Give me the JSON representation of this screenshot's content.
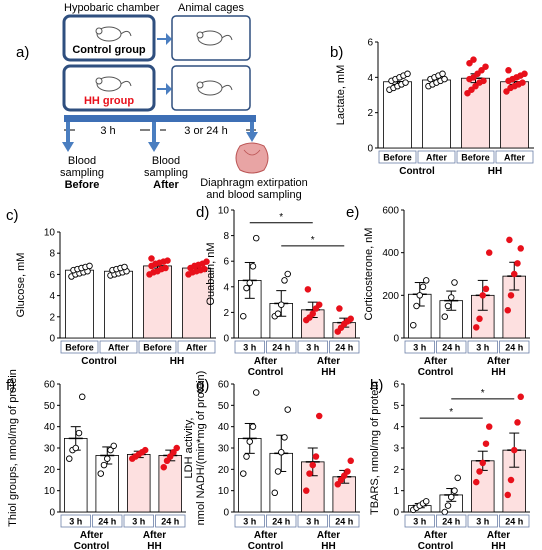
{
  "diagram": {
    "panel_label": "a)",
    "chamber_title": "Hypobaric chamber",
    "cages_title": "Animal cages",
    "control_group": "Control group",
    "hh_group": "HH group",
    "time_1": "3 h",
    "time_2": "3 or 24 h",
    "sampling_before_1": "Blood",
    "sampling_before_2": "sampling",
    "sampling_before_3": "Before",
    "sampling_after_1": "Blood",
    "sampling_after_2": "sampling",
    "sampling_after_3": "After",
    "extirpation_1": "Diaphragm extirpation",
    "extirpation_2": "and blood sampling"
  },
  "colors": {
    "box_border": "#2f4f7f",
    "arrow": "#4a7ec0",
    "hh_fill": "#fde0e0",
    "hh_red": "#e8101b",
    "bar_outline": "#000000",
    "timeline": "#3d6fb5"
  },
  "chart_data": [
    {
      "id": "b",
      "panel_label": "b)",
      "type": "bar",
      "ylabel": "Lactate, mM",
      "ylim": [
        0,
        6
      ],
      "yticks": [
        "0",
        "2",
        "4",
        "6"
      ],
      "categories": [
        "Before",
        "After",
        "Before",
        "After"
      ],
      "groups": [
        "Control",
        "HH"
      ],
      "values": [
        3.75,
        3.85,
        3.95,
        3.75
      ],
      "errors": [
        0.15,
        0.12,
        0.25,
        0.15
      ],
      "points": [
        [
          3.3,
          3.4,
          3.5,
          3.6,
          3.7,
          3.8,
          3.9,
          4.0,
          4.1,
          4.2
        ],
        [
          3.5,
          3.6,
          3.7,
          3.8,
          3.9,
          3.9,
          4.0,
          4.1,
          4.2
        ],
        [
          3.1,
          3.3,
          3.5,
          3.7,
          3.8,
          3.9,
          4.0,
          4.2,
          4.4,
          4.6,
          4.8,
          5.0
        ],
        [
          3.2,
          3.4,
          3.5,
          3.6,
          3.7,
          3.8,
          3.9,
          4.0,
          4.1,
          4.2,
          4.4
        ]
      ],
      "hh": [
        false,
        false,
        true,
        true
      ],
      "brackets": []
    },
    {
      "id": "c",
      "panel_label": "c)",
      "type": "bar",
      "ylabel": "Glucose, mM",
      "ylim": [
        0,
        10
      ],
      "yticks": [
        "0",
        "2",
        "4",
        "6",
        "8",
        "10"
      ],
      "categories": [
        "Before",
        "After",
        "Before",
        "After"
      ],
      "groups": [
        "Control",
        "HH"
      ],
      "values": [
        6.4,
        6.3,
        6.8,
        6.6
      ],
      "errors": [
        0.2,
        0.15,
        0.2,
        0.2
      ],
      "points": [
        [
          5.8,
          6.0,
          6.1,
          6.2,
          6.3,
          6.4,
          6.5,
          6.6,
          6.7,
          6.8
        ],
        [
          5.9,
          6.0,
          6.1,
          6.2,
          6.3,
          6.4,
          6.5,
          6.6,
          6.7
        ],
        [
          6.0,
          6.2,
          6.3,
          6.5,
          6.6,
          6.8,
          7.0,
          7.1,
          7.2,
          7.3,
          7.5
        ],
        [
          6.0,
          6.2,
          6.3,
          6.4,
          6.5,
          6.6,
          6.8,
          6.9,
          7.0,
          7.2
        ]
      ],
      "hh": [
        false,
        false,
        true,
        true
      ],
      "brackets": []
    },
    {
      "id": "d",
      "panel_label": "d)",
      "type": "bar",
      "ylabel": "Ouabain, nM",
      "ylim": [
        0,
        10
      ],
      "yticks": [
        "0",
        "2",
        "4",
        "6",
        "8",
        "10"
      ],
      "categories": [
        "3 h",
        "24 h",
        "3 h",
        "24 h"
      ],
      "groups": [
        "After\nControl",
        "After\nHH"
      ],
      "values": [
        4.5,
        2.7,
        2.2,
        1.2
      ],
      "errors": [
        1.4,
        1.0,
        0.6,
        0.35
      ],
      "points": [
        [
          1.7,
          3.9,
          4.3,
          5.6,
          7.8
        ],
        [
          1.7,
          1.9,
          2.6,
          4.5,
          5.0
        ],
        [
          1.4,
          1.6,
          1.9,
          2.3,
          2.6,
          3.8
        ],
        [
          0.5,
          0.8,
          1.1,
          1.3,
          1.5,
          2.3
        ]
      ],
      "hh": [
        false,
        false,
        true,
        true
      ],
      "brackets": [
        {
          "from": 0,
          "to": 2,
          "y": 9.0,
          "label": "*"
        },
        {
          "from": 1,
          "to": 3,
          "y": 7.2,
          "label": "*"
        }
      ]
    },
    {
      "id": "e",
      "panel_label": "e)",
      "type": "bar",
      "ylabel": "Corticosterone, nM",
      "ylim": [
        0,
        600
      ],
      "yticks": [
        "0",
        "200",
        "400",
        "600"
      ],
      "categories": [
        "3 h",
        "24 h",
        "3 h",
        "24 h"
      ],
      "groups": [
        "After\nControl",
        "After\nHH"
      ],
      "values": [
        205,
        175,
        200,
        290
      ],
      "errors": [
        55,
        45,
        70,
        65
      ],
      "points": [
        [
          60,
          150,
          200,
          240,
          270
        ],
        [
          100,
          150,
          190,
          260
        ],
        [
          50,
          90,
          200,
          230,
          400
        ],
        [
          130,
          200,
          300,
          350,
          420,
          460
        ]
      ],
      "hh": [
        false,
        false,
        true,
        true
      ],
      "brackets": []
    },
    {
      "id": "f",
      "panel_label": "f)",
      "type": "bar",
      "ylabel": "Thiol groups, nmol/mg of protein",
      "ylim": [
        0,
        60
      ],
      "yticks": [
        "0",
        "10",
        "20",
        "30",
        "40",
        "50",
        "60"
      ],
      "categories": [
        "3 h",
        "24 h",
        "3 h",
        "24 h"
      ],
      "groups": [
        "After\nControl",
        "After\nHH"
      ],
      "values": [
        34.5,
        26.5,
        27.0,
        26.5
      ],
      "errors": [
        5.5,
        4.0,
        1.5,
        2.5
      ],
      "points": [
        [
          25,
          29,
          30,
          37,
          54
        ],
        [
          18,
          22,
          25,
          29,
          31
        ],
        [
          25,
          26,
          27,
          28,
          29
        ],
        [
          21,
          24,
          26,
          28,
          30
        ]
      ],
      "hh": [
        false,
        false,
        true,
        true
      ],
      "brackets": []
    },
    {
      "id": "g",
      "panel_label": "g)",
      "type": "bar",
      "ylabel_1": "LDH activity,",
      "ylabel_2": "nmol NADH/(min*mg of protein)",
      "ylim": [
        0,
        60
      ],
      "yticks": [
        "0",
        "10",
        "20",
        "30",
        "40",
        "50",
        "60"
      ],
      "categories": [
        "3 h",
        "24 h",
        "3 h",
        "24 h"
      ],
      "groups": [
        "After\nControl",
        "After\nHH"
      ],
      "values": [
        34.5,
        27.5,
        23.5,
        16.5
      ],
      "errors": [
        7.0,
        8.5,
        6.5,
        3.0
      ],
      "points": [
        [
          18,
          26,
          33,
          40,
          56
        ],
        [
          9,
          19,
          28,
          35,
          48
        ],
        [
          10,
          18,
          22,
          26,
          45
        ],
        [
          13,
          15,
          17,
          19,
          24
        ]
      ],
      "hh": [
        false,
        false,
        true,
        true
      ],
      "brackets": []
    },
    {
      "id": "h",
      "panel_label": "h)",
      "type": "bar",
      "ylabel": "TBARS, nmol/mg of protein",
      "ylim": [
        0,
        6
      ],
      "yticks": [
        "0",
        "1",
        "2",
        "3",
        "4",
        "5",
        "6"
      ],
      "categories": [
        "3 h",
        "24 h",
        "3 h",
        "24 h"
      ],
      "groups": [
        "After\nControl",
        "After\nHH"
      ],
      "values": [
        0.3,
        0.8,
        2.4,
        2.9
      ],
      "errors": [
        0.1,
        0.3,
        0.45,
        0.8
      ],
      "points": [
        [
          0.1,
          0.2,
          0.3,
          0.4,
          0.5
        ],
        [
          0.0,
          0.3,
          0.7,
          1.0,
          1.6
        ],
        [
          1.4,
          1.9,
          2.3,
          3.2,
          4.0
        ],
        [
          0.8,
          1.5,
          2.9,
          4.2,
          5.4
        ]
      ],
      "hh": [
        false,
        false,
        true,
        true
      ],
      "brackets": [
        {
          "from": 0,
          "to": 2,
          "y": 4.4,
          "label": "*"
        },
        {
          "from": 1,
          "to": 3,
          "y": 5.3,
          "label": "*"
        }
      ]
    }
  ]
}
